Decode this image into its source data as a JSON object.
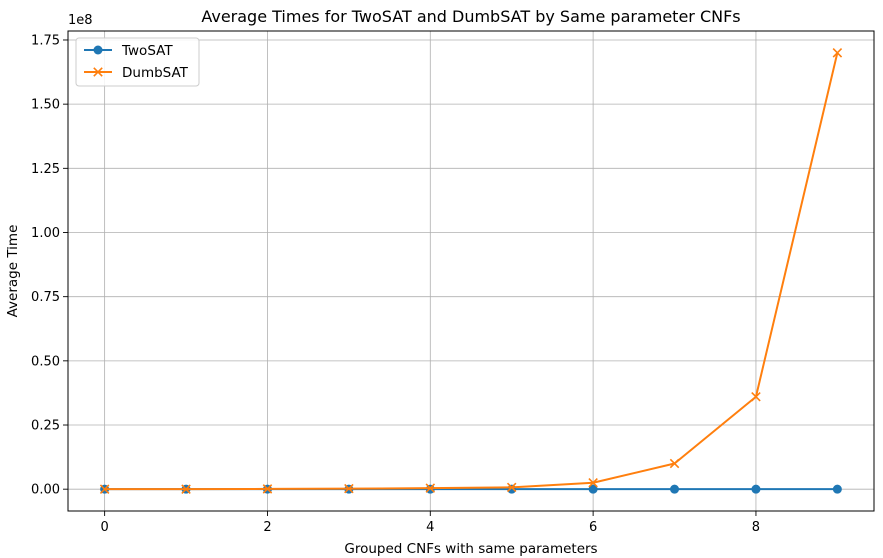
{
  "chart_data": {
    "type": "line",
    "title": "Average Times for TwoSAT and DumbSAT by Same parameter CNFs",
    "xlabel": "Grouped CNFs with same parameters",
    "ylabel": "Average Time",
    "y_offset_label": "1e8",
    "x": [
      0,
      1,
      2,
      3,
      4,
      5,
      6,
      7,
      8,
      9
    ],
    "xlim": [
      -0.45,
      9.45
    ],
    "ylim": [
      -8500000,
      178500000
    ],
    "x_ticks": [
      0,
      2,
      4,
      6,
      8
    ],
    "x_tick_labels": [
      "0",
      "2",
      "4",
      "6",
      "8"
    ],
    "y_ticks": [
      0,
      25000000,
      50000000,
      75000000,
      100000000,
      125000000,
      150000000,
      175000000
    ],
    "y_tick_labels": [
      "0.00",
      "0.25",
      "0.50",
      "0.75",
      "1.00",
      "1.25",
      "1.50",
      "1.75"
    ],
    "grid": true,
    "legend": "top-left",
    "series": [
      {
        "name": "TwoSAT",
        "color": "#1f77b4",
        "marker": "circle",
        "values": [
          0,
          0,
          0,
          0,
          0,
          0,
          0,
          0,
          0,
          0
        ]
      },
      {
        "name": "DumbSAT",
        "color": "#ff7f0e",
        "marker": "x",
        "values": [
          0,
          0,
          100000,
          200000,
          400000,
          700000,
          2500000,
          10000000,
          36000000,
          170000000
        ]
      }
    ]
  }
}
